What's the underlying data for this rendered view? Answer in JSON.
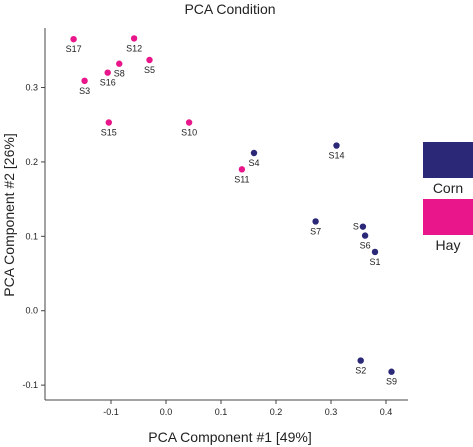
{
  "chart_data": {
    "type": "scatter",
    "title": "PCA Condition",
    "xlabel": "PCA Component #1 [49%]",
    "ylabel": "PCA Component #2 [26%]",
    "xlim": [
      -0.22,
      0.44
    ],
    "ylim": [
      -0.12,
      0.38
    ],
    "x_ticks": [
      -0.1,
      0.0,
      0.1,
      0.2,
      0.3,
      0.4
    ],
    "x_tick_labels": [
      "-0.1",
      "0.0",
      "0.1",
      "0.2",
      "0.3",
      "0.4"
    ],
    "y_ticks": [
      -0.1,
      0.0,
      0.1,
      0.2,
      0.3
    ],
    "y_tick_labels": [
      "-0.1",
      "0.0",
      "0.1",
      "0.2",
      "0.3"
    ],
    "grid": false,
    "legend_placement": "right",
    "series": [
      {
        "name": "Corn",
        "color": "#2b2878",
        "points": [
          {
            "label": "S4",
            "x": 0.16,
            "y": 0.212
          },
          {
            "label": "S14",
            "x": 0.31,
            "y": 0.222
          },
          {
            "label": "S7",
            "x": 0.272,
            "y": 0.12
          },
          {
            "label": "S6",
            "x": 0.362,
            "y": 0.101
          },
          {
            "label": "S1",
            "x": 0.38,
            "y": 0.079
          },
          {
            "label": "S2",
            "x": 0.354,
            "y": -0.067
          },
          {
            "label": "S9",
            "x": 0.41,
            "y": -0.082
          }
        ]
      },
      {
        "name": "Hay",
        "color": "#e8168a",
        "points": [
          {
            "label": "S17",
            "x": -0.168,
            "y": 0.365
          },
          {
            "label": "S12",
            "x": -0.058,
            "y": 0.366
          },
          {
            "label": "S5",
            "x": -0.03,
            "y": 0.337
          },
          {
            "label": "S8",
            "x": -0.085,
            "y": 0.332
          },
          {
            "label": "S16",
            "x": -0.106,
            "y": 0.32
          },
          {
            "label": "S3",
            "x": -0.148,
            "y": 0.309
          },
          {
            "label": "S15",
            "x": -0.104,
            "y": 0.253
          },
          {
            "label": "S10",
            "x": 0.042,
            "y": 0.253
          },
          {
            "label": "S11",
            "x": 0.138,
            "y": 0.19
          }
        ]
      }
    ],
    "extra_points": [
      {
        "label": "S",
        "series": "Corn",
        "x": 0.358,
        "y": 0.113
      }
    ]
  }
}
